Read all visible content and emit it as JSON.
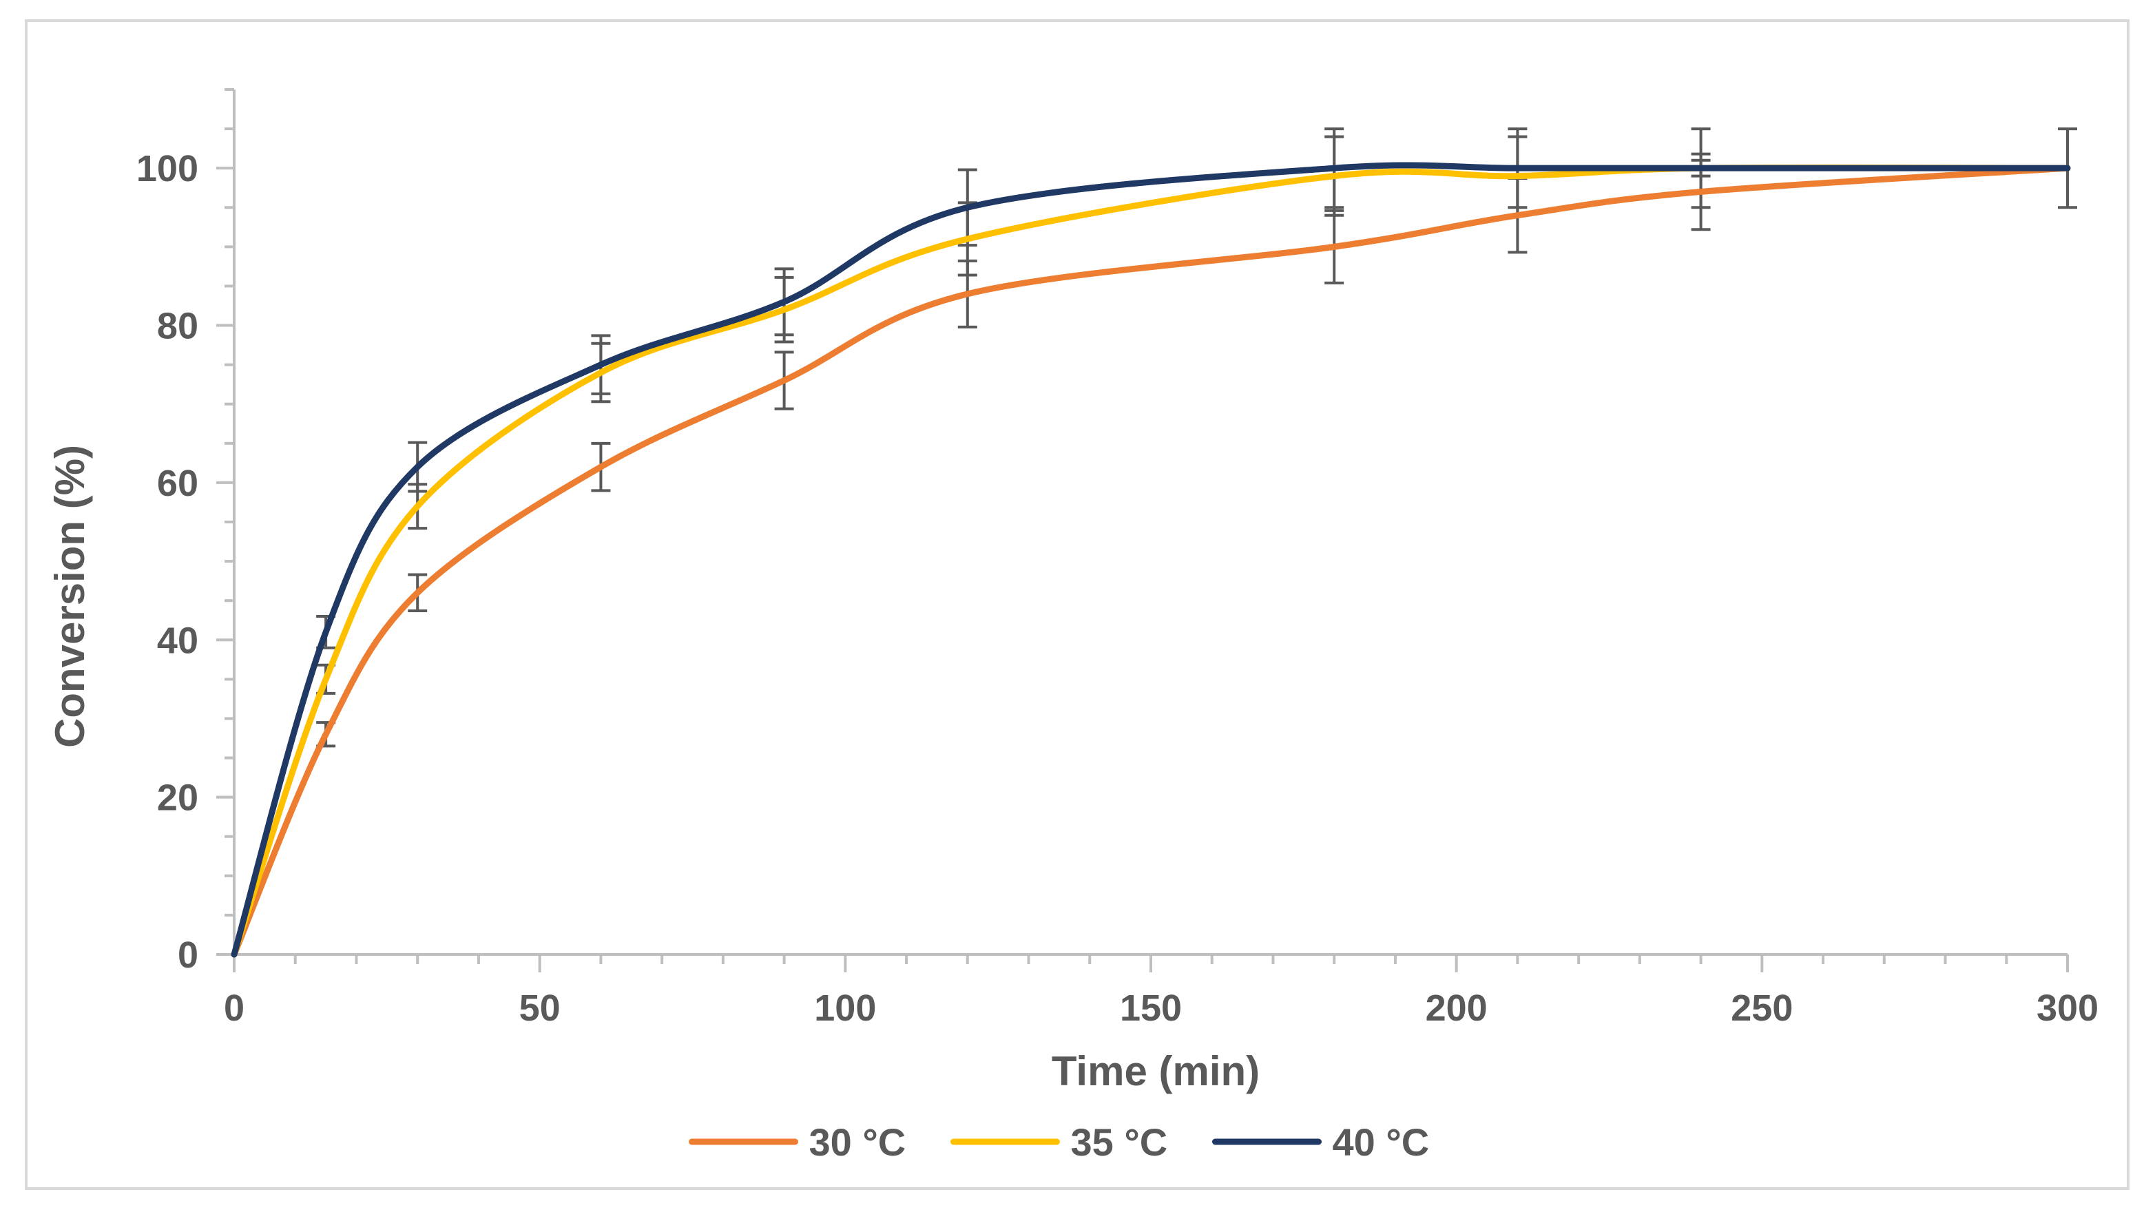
{
  "chart_data": {
    "type": "line",
    "title": "",
    "xlabel": "Time (min)",
    "ylabel": "Conversion (%)",
    "xlim": [
      0,
      300
    ],
    "ylim": [
      0,
      110
    ],
    "x_ticks": [
      0,
      50,
      100,
      150,
      200,
      250,
      300
    ],
    "y_ticks": [
      0,
      20,
      40,
      60,
      80,
      100
    ],
    "x_tick_labels": [
      "0",
      "50",
      "100",
      "150",
      "200",
      "250",
      "300"
    ],
    "y_tick_labels": [
      "0",
      "20",
      "40",
      "60",
      "80",
      "100"
    ],
    "grid": false,
    "smooth": true,
    "legend": "bottom",
    "series": [
      {
        "name": "30 °C",
        "color": "#ED7D31",
        "x": [
          0,
          15,
          30,
          60,
          90,
          120,
          180,
          210,
          240,
          300
        ],
        "y": [
          0,
          28,
          46,
          62,
          73,
          84,
          90,
          94,
          97,
          100
        ],
        "err": [
          0,
          1.5,
          2.3,
          3,
          3.6,
          4.2,
          4.6,
          4.7,
          4.8,
          0
        ]
      },
      {
        "name": "35 °C",
        "color": "#FFC000",
        "x": [
          0,
          15,
          30,
          60,
          90,
          120,
          180,
          210,
          240,
          300
        ],
        "y": [
          0,
          35,
          57,
          74,
          82,
          91,
          99,
          99,
          100,
          100
        ],
        "err": [
          0,
          1.8,
          2.8,
          3.7,
          4.1,
          4.6,
          5,
          5,
          1,
          0
        ]
      },
      {
        "name": "40 °C",
        "color": "#203864",
        "x": [
          0,
          15,
          30,
          60,
          90,
          120,
          180,
          210,
          240,
          300
        ],
        "y": [
          0,
          41,
          62,
          75,
          83,
          95,
          100,
          100,
          100,
          100
        ],
        "err": [
          0,
          2,
          3.1,
          3.7,
          4.2,
          4.8,
          5,
          5,
          5,
          5
        ]
      }
    ]
  }
}
